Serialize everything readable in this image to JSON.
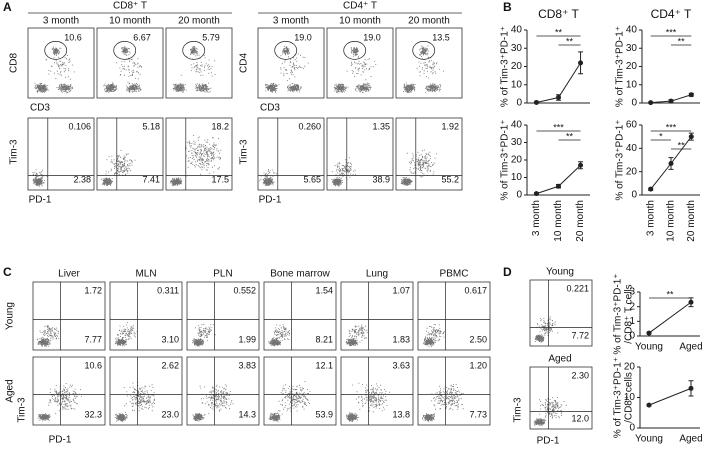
{
  "panel_a": {
    "label": "A",
    "tim_axis": "Tim-3",
    "pd_axis": "PD-1",
    "groups": [
      {
        "title": "CD8⁺ T",
        "gate_y": "CD8",
        "gate_x": "CD3",
        "columns": [
          "3 month",
          "10 month",
          "20 month"
        ],
        "gate_values": [
          "10.6",
          "6.67",
          "5.79"
        ],
        "upper_right": [
          "0.106",
          "5.18",
          "18.2"
        ],
        "lower_right": [
          "2.38",
          "7.41",
          "17.5"
        ]
      },
      {
        "title": "CD4⁺ T",
        "gate_y": "CD4",
        "gate_x": "CD3",
        "columns": [
          "3 month",
          "10 month",
          "20 month"
        ],
        "gate_values": [
          "19.0",
          "19.0",
          "13.5"
        ],
        "upper_right": [
          "0.260",
          "1.35",
          "1.92"
        ],
        "lower_right": [
          "5.65",
          "38.9",
          "55.2"
        ]
      }
    ]
  },
  "panel_b": {
    "label": "B"
  },
  "panel_c": {
    "label": "C",
    "rows": [
      "Young",
      "Aged"
    ],
    "columns": [
      "Liver",
      "MLN",
      "PLN",
      "Bone marrow",
      "Lung",
      "PBMC"
    ],
    "y_axis": "Tim-3",
    "x_axis": "PD-1",
    "upper_right": [
      [
        "1.72",
        "0.311",
        "0.552",
        "1.54",
        "1.07",
        "0.617"
      ],
      [
        "10.6",
        "2.62",
        "3.83",
        "12.1",
        "3.63",
        "1.20"
      ]
    ],
    "lower_right": [
      [
        "7.77",
        "3.10",
        "1.99",
        "8.21",
        "1.83",
        "2.50"
      ],
      [
        "32.3",
        "23.0",
        "14.3",
        "53.9",
        "13.8",
        "7.73"
      ]
    ]
  },
  "panel_d": {
    "label": "D",
    "rows": [
      "Young",
      "Aged"
    ],
    "y_axis": "Tim-3",
    "x_axis": "PD-1",
    "upper_right": [
      "0.221",
      "2.30"
    ],
    "lower_right": [
      "7.72",
      "12.0"
    ]
  },
  "chart_data": [
    {
      "type": "line",
      "title": "CD8⁺ T",
      "y_label": [
        "% of Tim-3⁺PD-1⁺"
      ],
      "categories": [
        "3 month",
        "10 month",
        "20 month"
      ],
      "values": [
        0.3,
        3,
        22
      ],
      "errors": [
        0.3,
        1.5,
        6
      ],
      "ylim": [
        0,
        40
      ],
      "yticks": [
        0,
        10,
        20,
        30,
        40
      ],
      "color": "#222222",
      "show_categories": false,
      "annotations": [
        {
          "text": "**",
          "between": [
            "3 month",
            "20 month"
          ]
        },
        {
          "text": "**",
          "between": [
            "10 month",
            "20 month"
          ]
        }
      ]
    },
    {
      "type": "line",
      "title": "CD4⁺ T",
      "y_label": [
        "% of Tim-3⁺PD-1⁺"
      ],
      "categories": [
        "3 month",
        "10 month",
        "20 month"
      ],
      "values": [
        0.2,
        1,
        4.5
      ],
      "errors": [
        0.2,
        0.8,
        0.8
      ],
      "ylim": [
        0,
        40
      ],
      "yticks": [
        0,
        10,
        20,
        30,
        40
      ],
      "color": "#222222",
      "show_categories": false,
      "annotations": [
        {
          "text": "***",
          "between": [
            "3 month",
            "20 month"
          ]
        },
        {
          "text": "**",
          "between": [
            "10 month",
            "20 month"
          ]
        }
      ]
    },
    {
      "type": "line",
      "y_label": [
        "% of Tim-3⁺PD-1⁺"
      ],
      "categories": [
        "3 month",
        "10 month",
        "20 month"
      ],
      "values": [
        0.8,
        5,
        17
      ],
      "errors": [
        0.5,
        1,
        2
      ],
      "ylim": [
        0,
        40
      ],
      "yticks": [
        0,
        10,
        20,
        30,
        40
      ],
      "color": "#222222",
      "show_categories": true,
      "annotations": [
        {
          "text": "***",
          "between": [
            "3 month",
            "20 month"
          ]
        },
        {
          "text": "**",
          "between": [
            "10 month",
            "20 month"
          ]
        }
      ]
    },
    {
      "type": "line",
      "y_label": [
        "% of Tim-3⁺PD-1⁺"
      ],
      "categories": [
        "3 month",
        "10 month",
        "20 month"
      ],
      "values": [
        5,
        27,
        50
      ],
      "errors": [
        1,
        5,
        3
      ],
      "ylim": [
        0,
        60
      ],
      "yticks": [
        0,
        20,
        40,
        60
      ],
      "color": "#222222",
      "show_categories": true,
      "annotations": [
        {
          "text": "***",
          "between": [
            "3 month",
            "20 month"
          ]
        },
        {
          "text": "*",
          "between": [
            "3 month",
            "10 month"
          ]
        },
        {
          "text": "**",
          "between": [
            "10 month",
            "20 month"
          ]
        }
      ]
    },
    {
      "type": "line",
      "y_label": [
        "% of Tim-3⁺PD-1⁺",
        "/CD8⁺ T cells"
      ],
      "categories": [
        "Young",
        "Aged"
      ],
      "values": [
        0.2,
        2.3
      ],
      "errors": [
        0.05,
        0.3
      ],
      "ylim": [
        0,
        3
      ],
      "yticks": [
        0,
        1,
        2,
        3
      ],
      "color": "#222222",
      "show_categories": true,
      "annotations": [
        {
          "text": "**",
          "between": [
            "Young",
            "Aged"
          ]
        }
      ]
    },
    {
      "type": "line",
      "y_label": [
        "% of Tim-3⁺PD-1⁺",
        "/CD8⁺ cells"
      ],
      "categories": [
        "Young",
        "Aged"
      ],
      "values": [
        7.5,
        13
      ],
      "errors": [
        0.3,
        2.5
      ],
      "ylim": [
        0,
        20
      ],
      "yticks": [
        0,
        10,
        20
      ],
      "color": "#222222",
      "show_categories": true,
      "annotations": []
    }
  ]
}
